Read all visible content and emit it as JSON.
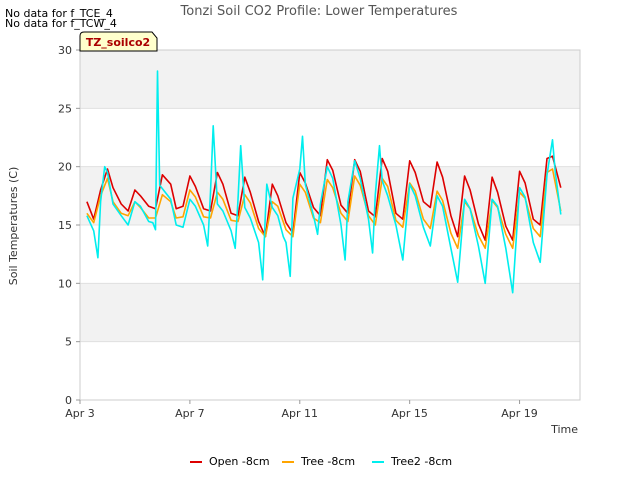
{
  "notes": [
    "No data for f_TCE_4",
    "No data for f_TCW_4"
  ],
  "badge": "TZ_soilco2",
  "chart_data": {
    "type": "line",
    "title": "Tonzi Soil CO2 Profile: Lower Temperatures",
    "xlabel": "Time",
    "ylabel": "Soil Temperatures (C)",
    "xlim": [
      0,
      18.2
    ],
    "ylim": [
      0,
      30
    ],
    "x_ticks": [
      {
        "x": 0,
        "label": "Apr 3"
      },
      {
        "x": 4,
        "label": "Apr 7"
      },
      {
        "x": 8,
        "label": "Apr 11"
      },
      {
        "x": 12,
        "label": "Apr 15"
      },
      {
        "x": 16,
        "label": "Apr 19"
      }
    ],
    "y_ticks": [
      0,
      5,
      10,
      15,
      20,
      25,
      30
    ],
    "grid": true,
    "legend_position": "bottom",
    "series": [
      {
        "name": "Open -8cm",
        "color": "#dd0000",
        "x": [
          0.25,
          0.5,
          0.75,
          1.0,
          1.2,
          1.5,
          1.75,
          2.0,
          2.2,
          2.5,
          2.75,
          3.0,
          3.3,
          3.5,
          3.75,
          4.0,
          4.2,
          4.5,
          4.75,
          5.0,
          5.2,
          5.5,
          5.75,
          6.0,
          6.2,
          6.5,
          6.75,
          7.0,
          7.2,
          7.5,
          7.75,
          8.0,
          8.2,
          8.5,
          8.75,
          9.0,
          9.2,
          9.5,
          9.75,
          10.0,
          10.2,
          10.5,
          10.75,
          11.0,
          11.2,
          11.5,
          11.75,
          12.0,
          12.2,
          12.5,
          12.75,
          13.0,
          13.2,
          13.5,
          13.75,
          14.0,
          14.2,
          14.5,
          14.75,
          15.0,
          15.2,
          15.5,
          15.75,
          16.0,
          16.2,
          16.5,
          16.75,
          17.0,
          17.2,
          17.5
        ],
        "y": [
          17.0,
          15.5,
          18.0,
          19.8,
          18.2,
          16.8,
          16.2,
          18.0,
          17.5,
          16.6,
          16.4,
          19.3,
          18.5,
          16.4,
          16.6,
          19.2,
          18.3,
          16.4,
          16.2,
          19.5,
          18.5,
          16.0,
          15.8,
          19.1,
          17.8,
          15.3,
          14.0,
          18.5,
          17.5,
          15.2,
          14.3,
          19.5,
          18.6,
          16.5,
          15.8,
          20.6,
          19.7,
          16.7,
          16.0,
          20.6,
          19.6,
          16.2,
          15.7,
          20.7,
          19.6,
          16.0,
          15.5,
          20.5,
          19.5,
          17.0,
          16.5,
          20.4,
          19.1,
          15.8,
          14.0,
          19.2,
          18.0,
          15.1,
          13.7,
          19.1,
          17.8,
          14.9,
          13.7,
          19.6,
          18.6,
          15.5,
          15.0,
          20.7,
          20.9,
          18.2
        ]
      },
      {
        "name": "Tree -8cm",
        "color": "#ffa500",
        "x": [
          0.25,
          0.5,
          0.75,
          1.0,
          1.2,
          1.5,
          1.75,
          2.0,
          2.2,
          2.5,
          2.75,
          3.0,
          3.3,
          3.5,
          3.75,
          4.0,
          4.2,
          4.5,
          4.75,
          5.0,
          5.2,
          5.5,
          5.75,
          6.0,
          6.2,
          6.5,
          6.75,
          7.0,
          7.2,
          7.5,
          7.75,
          8.0,
          8.2,
          8.5,
          8.75,
          9.0,
          9.2,
          9.5,
          9.75,
          10.0,
          10.2,
          10.5,
          10.75,
          11.0,
          11.2,
          11.5,
          11.75,
          12.0,
          12.2,
          12.5,
          12.75,
          13.0,
          13.2,
          13.5,
          13.75,
          14.0,
          14.2,
          14.5,
          14.75,
          15.0,
          15.2,
          15.5,
          15.75,
          16.0,
          16.2,
          16.5,
          16.75,
          17.0,
          17.2,
          17.5
        ],
        "y": [
          16.0,
          15.2,
          17.5,
          19.0,
          17.0,
          16.0,
          15.8,
          17.0,
          16.5,
          15.6,
          15.6,
          17.6,
          17.0,
          15.6,
          15.7,
          18.0,
          17.4,
          15.7,
          15.6,
          17.8,
          17.2,
          15.4,
          15.3,
          17.6,
          16.9,
          14.7,
          14.0,
          17.0,
          16.6,
          14.6,
          14.0,
          18.5,
          17.8,
          15.6,
          15.2,
          18.9,
          18.2,
          16.0,
          15.3,
          19.2,
          18.4,
          15.8,
          15.0,
          19.0,
          18.3,
          15.4,
          14.8,
          18.6,
          17.9,
          15.5,
          14.7,
          17.9,
          17.1,
          14.3,
          13.0,
          17.0,
          16.4,
          14.1,
          13.0,
          17.1,
          16.5,
          14.2,
          13.0,
          17.8,
          17.3,
          14.7,
          14.0,
          19.5,
          19.8,
          16.2
        ]
      },
      {
        "name": "Tree2 -8cm",
        "color": "#00eeee",
        "x": [
          0.25,
          0.5,
          0.65,
          0.75,
          0.9,
          1.0,
          1.2,
          1.5,
          1.75,
          2.0,
          2.2,
          2.5,
          2.65,
          2.75,
          2.82,
          2.9,
          3.3,
          3.5,
          3.75,
          4.0,
          4.2,
          4.5,
          4.65,
          4.75,
          4.85,
          5.0,
          5.2,
          5.5,
          5.65,
          5.75,
          5.85,
          6.0,
          6.2,
          6.5,
          6.65,
          6.75,
          6.8,
          7.0,
          7.2,
          7.4,
          7.5,
          7.65,
          7.75,
          8.0,
          8.1,
          8.2,
          8.5,
          8.65,
          8.75,
          9.0,
          9.2,
          9.5,
          9.65,
          9.75,
          10.0,
          10.2,
          10.5,
          10.65,
          10.75,
          10.9,
          11.0,
          11.2,
          11.5,
          11.75,
          12.0,
          12.2,
          12.5,
          12.75,
          13.0,
          13.2,
          13.5,
          13.75,
          14.0,
          14.2,
          14.5,
          14.75,
          15.0,
          15.2,
          15.5,
          15.75,
          16.0,
          16.2,
          16.5,
          16.75,
          17.0,
          17.2,
          17.3,
          17.5
        ],
        "y": [
          15.8,
          14.5,
          12.2,
          17.0,
          20.0,
          19.5,
          16.8,
          15.8,
          15.0,
          17.0,
          16.6,
          15.3,
          15.2,
          14.6,
          28.2,
          18.4,
          17.2,
          15.0,
          14.8,
          17.2,
          16.6,
          15.0,
          13.2,
          17.8,
          23.5,
          16.8,
          16.2,
          14.5,
          13.0,
          17.2,
          21.8,
          16.5,
          15.6,
          13.5,
          10.3,
          16.0,
          18.5,
          16.5,
          15.8,
          14.0,
          13.5,
          10.6,
          17.3,
          19.8,
          22.6,
          18.5,
          15.8,
          14.2,
          16.8,
          20.0,
          19.0,
          15.0,
          12.0,
          17.0,
          20.5,
          19.0,
          15.5,
          12.6,
          17.6,
          21.8,
          18.8,
          17.5,
          15.0,
          12.0,
          18.5,
          17.5,
          14.8,
          13.2,
          17.5,
          16.6,
          13.0,
          10.1,
          17.2,
          16.4,
          13.2,
          10.0,
          17.2,
          16.6,
          13.0,
          9.2,
          18.2,
          17.4,
          13.5,
          11.8,
          19.3,
          22.3,
          19.5,
          15.9
        ]
      }
    ]
  }
}
